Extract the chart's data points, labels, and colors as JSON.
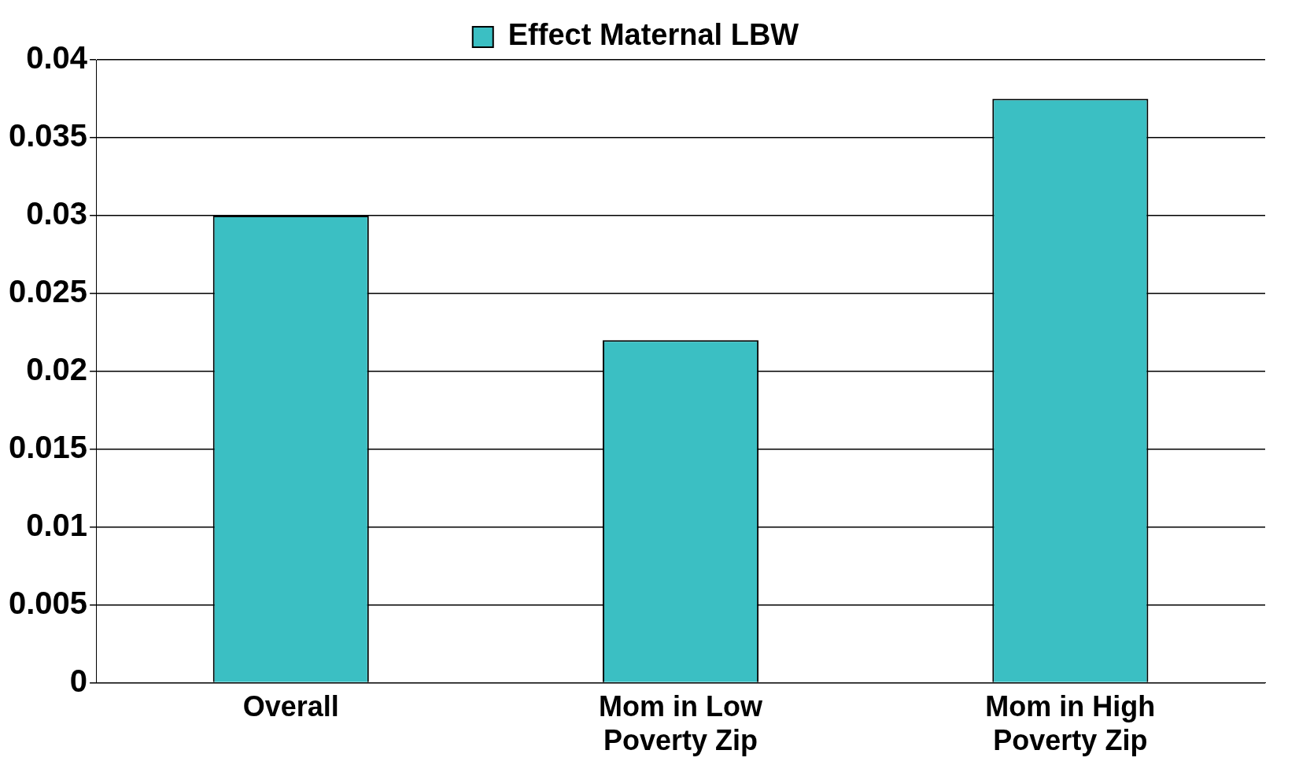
{
  "chart_data": {
    "type": "bar",
    "categories": [
      "Overall",
      "Mom in Low Poverty Zip",
      "Mom in High Poverty Zip"
    ],
    "series": [
      {
        "name": "Effect Maternal LBW",
        "color": "#3bbfc3",
        "values": [
          0.03,
          0.022,
          0.0375
        ]
      }
    ],
    "ylim": [
      0,
      0.04
    ],
    "yticks": [
      0,
      0.005,
      0.01,
      0.015,
      0.02,
      0.025,
      0.03,
      0.035,
      0.04
    ],
    "grid": "y",
    "legend": "top"
  }
}
